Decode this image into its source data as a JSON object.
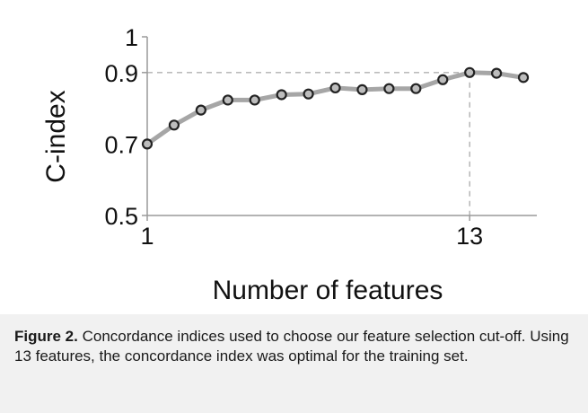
{
  "chart_data": {
    "type": "line",
    "title": "",
    "xlabel": "Number of features",
    "ylabel": "C-index",
    "x": [
      1,
      2,
      3,
      4,
      5,
      6,
      7,
      8,
      9,
      10,
      11,
      12,
      13,
      14,
      15
    ],
    "values": [
      0.7,
      0.753,
      0.795,
      0.823,
      0.823,
      0.838,
      0.84,
      0.857,
      0.852,
      0.855,
      0.855,
      0.88,
      0.9,
      0.898,
      0.886
    ],
    "xlim": [
      1,
      15.5
    ],
    "ylim": [
      0.5,
      1
    ],
    "x_ticks": [
      1,
      13
    ],
    "y_ticks": [
      0.5,
      0.7,
      0.9,
      1
    ],
    "y_tick_labels": [
      "0.5",
      "0.7",
      "0.9",
      "1"
    ],
    "x_tick_labels": [
      "1",
      "13"
    ],
    "reference_lines": {
      "y": 0.9,
      "x": 13
    },
    "grid": false,
    "colors": {
      "line": "#a6a6a6",
      "marker_edge": "#222222",
      "marker_fill": "#bdbdbd",
      "reference": "#b0b0b0"
    }
  },
  "caption": {
    "label": "Figure 2.",
    "text": "Concordance indices used to choose our feature selection cut-off. Using 13 features, the concordance index was optimal for the training set."
  }
}
